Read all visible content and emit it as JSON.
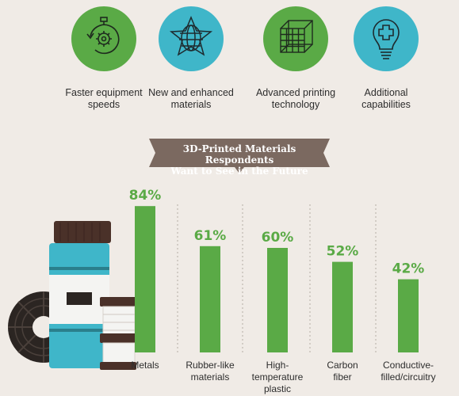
{
  "icons": [
    {
      "name": "stopwatch-gear-icon",
      "label": "Faster equipment\nspeeds",
      "color": "#5aaa46"
    },
    {
      "name": "wire-star-icon",
      "label": "New and enhanced\nmaterials",
      "color": "#3fb6c9"
    },
    {
      "name": "wire-cube-icon",
      "label": "Advanced printing\ntechnology",
      "color": "#5aaa46"
    },
    {
      "name": "lightbulb-plus-icon",
      "label": "Additional\ncapabilities",
      "color": "#3fb6c9"
    }
  ],
  "colors": {
    "bar": "#5aaa46",
    "banner": "#7b6960",
    "label": "#2d2d2d",
    "divider": "#b5aca4"
  },
  "chart_data": {
    "type": "bar",
    "title": "3D-Printed Materials Respondents\nWant to See in the Future",
    "categories": [
      "Metals",
      "Rubber-like\nmaterials",
      "High-\ntemperature\nplastic",
      "Carbon\nfiber",
      "Conductive-\nfilled/circuitry"
    ],
    "values": [
      84,
      61,
      60,
      52,
      42
    ],
    "value_labels": [
      "84%",
      "61%",
      "60%",
      "52%",
      "42%"
    ],
    "ylim": [
      0,
      100
    ],
    "grid": false
  }
}
